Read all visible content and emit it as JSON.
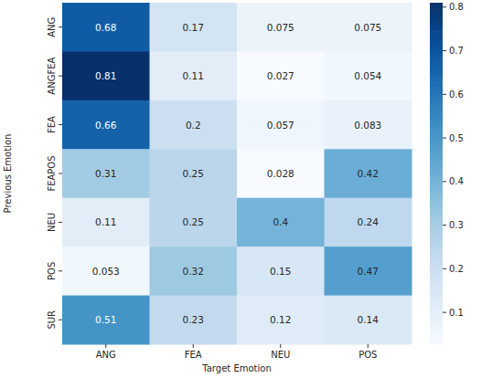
{
  "chart_data": {
    "type": "heatmap",
    "xlabel": "Target Emotion",
    "ylabel": "Previous Emotion",
    "x": [
      "ANG",
      "FEA",
      "NEU",
      "POS"
    ],
    "y": [
      "ANG",
      "ANGFEA",
      "FEA",
      "FEAPOS",
      "NEU",
      "POS",
      "SUR"
    ],
    "values": [
      [
        0.68,
        0.17,
        0.075,
        0.075
      ],
      [
        0.81,
        0.11,
        0.027,
        0.054
      ],
      [
        0.66,
        0.2,
        0.057,
        0.083
      ],
      [
        0.31,
        0.25,
        0.028,
        0.42
      ],
      [
        0.11,
        0.25,
        0.4,
        0.24
      ],
      [
        0.053,
        0.32,
        0.15,
        0.47
      ],
      [
        0.51,
        0.23,
        0.12,
        0.14
      ]
    ],
    "data_labels": true,
    "colorbar": {
      "range": [
        0.027,
        0.81
      ],
      "ticks": [
        0.1,
        0.2,
        0.3,
        0.4,
        0.5,
        0.6,
        0.7,
        0.8
      ]
    }
  }
}
